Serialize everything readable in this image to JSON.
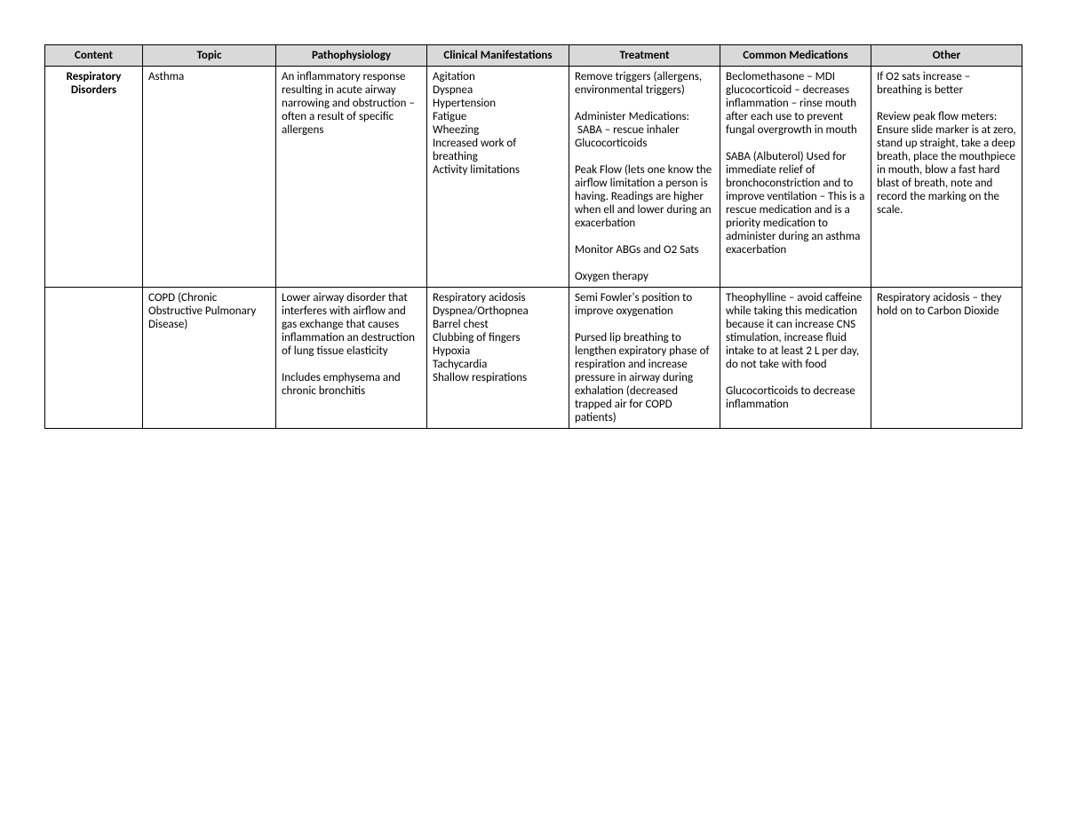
{
  "table": {
    "columns": [
      "Content",
      "Topic",
      "Pathophysiology",
      "Clinical Manifestations",
      "Treatment",
      "Common Medications",
      "Other"
    ],
    "rows": [
      {
        "content": "Respiratory Disorders",
        "topic": "Asthma",
        "pathophysiology": "An inflammatory response resulting in acute airway narrowing and obstruction – often a result of specific allergens",
        "clinical": "Agitation\nDyspnea\nHypertension\nFatigue\nWheezing\nIncreased work of breathing\nActivity limitations",
        "treatment": "Remove triggers (allergens, environmental triggers)\n\nAdminister Medications:\n SABA – rescue inhaler\nGlucocorticoids\n\nPeak Flow (lets one know the airflow limitation a person is having. Readings are higher when ell and lower during an exacerbation\n\nMonitor ABGs and O2 Sats\n\nOxygen therapy",
        "meds": "Beclomethasone – MDI glucocorticoid – decreases inflammation – rinse mouth after each use to prevent fungal overgrowth in mouth\n\nSABA (Albuterol) Used for immediate relief of bronchoconstriction and to improve ventilation – This is a rescue medication and is a priority medication to administer during an asthma exacerbation",
        "other": "If O2 sats increase – breathing is better\n\nReview peak flow meters: Ensure slide marker is at zero, stand up straight, take a deep breath, place the mouthpiece in mouth, blow a fast hard blast of breath, note and record the marking on the scale."
      },
      {
        "content": "",
        "topic": "COPD (Chronic Obstructive Pulmonary Disease)",
        "pathophysiology": "Lower airway disorder that interferes with airflow and gas exchange that causes inflammation an destruction of lung tissue elasticity\n\nIncludes emphysema and chronic bronchitis",
        "clinical": "Respiratory acidosis\nDyspnea/Orthopnea\nBarrel chest\nClubbing of fingers\nHypoxia\nTachycardia\nShallow respirations",
        "treatment": "Semi Fowler's position to improve oxygenation\n\nPursed lip breathing to lengthen expiratory phase of respiration and increase pressure in airway during exhalation (decreased trapped air for COPD patients)",
        "meds": "Theophylline – avoid caffeine while taking this medication because it can increase CNS stimulation, increase fluid intake to at least 2 L per day, do not take with food\n\nGlucocorticoids to decrease inflammation",
        "other": "Respiratory acidosis – they hold on to Carbon Dioxide"
      }
    ],
    "header_bg": "#d9d9d9",
    "border_color": "#000000",
    "font_family": "Calibri",
    "font_size_pt": 10
  }
}
